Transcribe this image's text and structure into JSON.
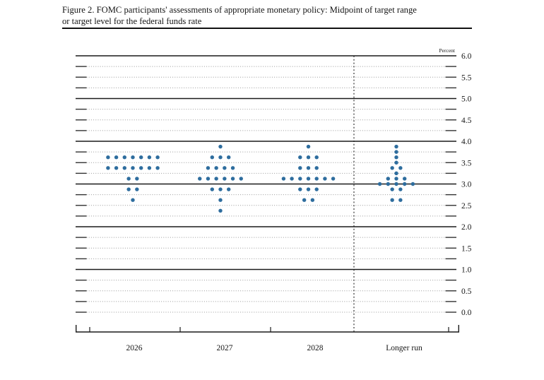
{
  "figure": {
    "title_line1": "Figure 2. FOMC participants' assessments of appropriate monetary policy: Midpoint of target range",
    "title_line2": "or target level for the federal funds rate"
  },
  "chart_data": {
    "type": "scatter",
    "subtype": "fomc-dot-plot",
    "title": "FOMC participants' assessments of appropriate monetary policy: Midpoint of target range or target level for the federal funds rate",
    "ylabel": "Percent",
    "ylim": [
      0.0,
      6.0
    ],
    "y_major_gridlines": [
      6.0,
      5.0,
      4.0,
      3.0,
      2.0,
      1.0
    ],
    "y_minor_step": 0.25,
    "y_tick_labels": [
      "6.0",
      "5.5",
      "5.0",
      "4.5",
      "4.0",
      "3.5",
      "3.0",
      "2.5",
      "2.0",
      "1.5",
      "1.0",
      "0.5",
      "0.0"
    ],
    "categories": [
      "2026",
      "2027",
      "2028",
      "Longer run"
    ],
    "separator_before": "Longer run",
    "grid": "dotted-quarters",
    "legend": "none",
    "dot_color": "#2e6d9e",
    "series": [
      {
        "name": "2026",
        "dots": [
          {
            "rate": 3.625,
            "count": 7
          },
          {
            "rate": 3.375,
            "count": 7
          },
          {
            "rate": 3.125,
            "count": 2
          },
          {
            "rate": 2.875,
            "count": 2
          },
          {
            "rate": 2.625,
            "count": 1
          }
        ]
      },
      {
        "name": "2027",
        "dots": [
          {
            "rate": 3.875,
            "count": 1
          },
          {
            "rate": 3.625,
            "count": 3
          },
          {
            "rate": 3.375,
            "count": 4
          },
          {
            "rate": 3.125,
            "count": 6
          },
          {
            "rate": 2.875,
            "count": 3
          },
          {
            "rate": 2.625,
            "count": 1
          },
          {
            "rate": 2.375,
            "count": 1
          }
        ]
      },
      {
        "name": "2028",
        "dots": [
          {
            "rate": 3.875,
            "count": 1
          },
          {
            "rate": 3.625,
            "count": 3
          },
          {
            "rate": 3.375,
            "count": 3
          },
          {
            "rate": 3.125,
            "count": 7
          },
          {
            "rate": 2.875,
            "count": 3
          },
          {
            "rate": 2.625,
            "count": 2
          }
        ]
      },
      {
        "name": "Longer run",
        "dots": [
          {
            "rate": 3.875,
            "count": 1
          },
          {
            "rate": 3.75,
            "count": 1
          },
          {
            "rate": 3.625,
            "count": 1
          },
          {
            "rate": 3.5,
            "count": 1
          },
          {
            "rate": 3.375,
            "count": 2
          },
          {
            "rate": 3.25,
            "count": 1
          },
          {
            "rate": 3.125,
            "count": 3
          },
          {
            "rate": 3.0,
            "count": 5
          },
          {
            "rate": 2.875,
            "count": 2
          },
          {
            "rate": 2.625,
            "count": 2
          }
        ]
      }
    ]
  }
}
